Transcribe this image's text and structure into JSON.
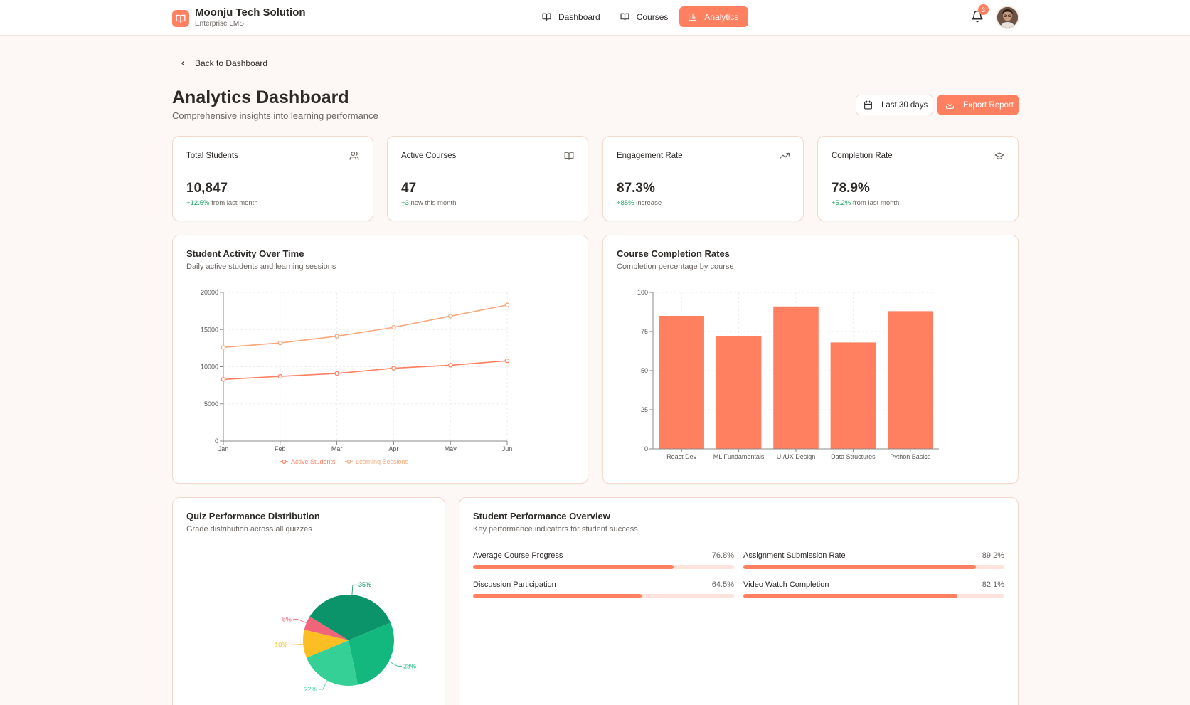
{
  "brand": {
    "name": "Moonju Tech Solution",
    "subtitle": "Enterprise LMS"
  },
  "nav": [
    {
      "label": "Dashboard",
      "icon": "book-open-icon",
      "active": false
    },
    {
      "label": "Courses",
      "icon": "book-open-icon",
      "active": false
    },
    {
      "label": "Analytics",
      "icon": "bar-chart-icon",
      "active": true
    }
  ],
  "notifications": {
    "count": "3"
  },
  "back": {
    "label": "Back to Dashboard"
  },
  "page": {
    "title": "Analytics Dashboard",
    "subtitle": "Comprehensive insights into learning performance"
  },
  "actions": {
    "range_label": "Last 30 days",
    "export_label": "Export Report"
  },
  "stats": [
    {
      "title": "Total Students",
      "icon": "users-icon",
      "value": "10,847",
      "delta": "+12.5%",
      "delta_note": "from last month"
    },
    {
      "title": "Active Courses",
      "icon": "book-open-icon",
      "value": "47",
      "delta": "+3",
      "delta_note": "new this month"
    },
    {
      "title": "Engagement Rate",
      "icon": "trending-up-icon",
      "value": "87.3%",
      "delta": "+85%",
      "delta_note": "increase"
    },
    {
      "title": "Completion Rate",
      "icon": "graduation-cap-icon",
      "value": "78.9%",
      "delta": "+5.2%",
      "delta_note": "from last month"
    }
  ],
  "activity": {
    "title": "Student Activity Over Time",
    "subtitle": "Daily active students and learning sessions"
  },
  "completion": {
    "title": "Course Completion Rates",
    "subtitle": "Completion percentage by course"
  },
  "quiz": {
    "title": "Quiz Performance Distribution",
    "subtitle": "Grade distribution across all quizzes"
  },
  "performance": {
    "title": "Student Performance Overview",
    "subtitle": "Key performance indicators for student success",
    "items": [
      {
        "label": "Average Course Progress",
        "value": "76.8%",
        "fraction": 0.768
      },
      {
        "label": "Assignment Submission Rate",
        "value": "89.2%",
        "fraction": 0.892
      },
      {
        "label": "Discussion Participation",
        "value": "64.5%",
        "fraction": 0.645
      },
      {
        "label": "Video Watch Completion",
        "value": "82.1%",
        "fraction": 0.821
      }
    ]
  },
  "colors": {
    "accent": "#ff7f61",
    "accent_light": "#f9a779",
    "pie": [
      "#0b9469",
      "#13b87e",
      "#35d095",
      "#fbbf24",
      "#f0657a"
    ]
  },
  "chart_data": [
    {
      "type": "line",
      "x": [
        "Jan",
        "Feb",
        "Mar",
        "Apr",
        "May",
        "Jun"
      ],
      "series": [
        {
          "name": "Active Students",
          "values": [
            8300,
            8700,
            9100,
            9800,
            10200,
            10800
          ]
        },
        {
          "name": "Learning Sessions",
          "values": [
            12600,
            13200,
            14100,
            15300,
            16800,
            18300
          ]
        }
      ],
      "yticks": [
        "0",
        "5000",
        "10000",
        "15000",
        "20000"
      ],
      "ylim": [
        0,
        20000
      ],
      "legend": "bottom"
    },
    {
      "type": "bar",
      "categories": [
        "React Dev",
        "ML Fundamentals",
        "UI/UX Design",
        "Data Structures",
        "Python Basics"
      ],
      "values": [
        85,
        72,
        91,
        68,
        88
      ],
      "yticks": [
        "0",
        "25",
        "50",
        "75",
        "100"
      ],
      "ylim": [
        0,
        100
      ]
    },
    {
      "type": "pie",
      "values": [
        35,
        28,
        22,
        10,
        5
      ],
      "labels": [
        "35%",
        "28%",
        "22%",
        "10%",
        "5%"
      ]
    }
  ]
}
